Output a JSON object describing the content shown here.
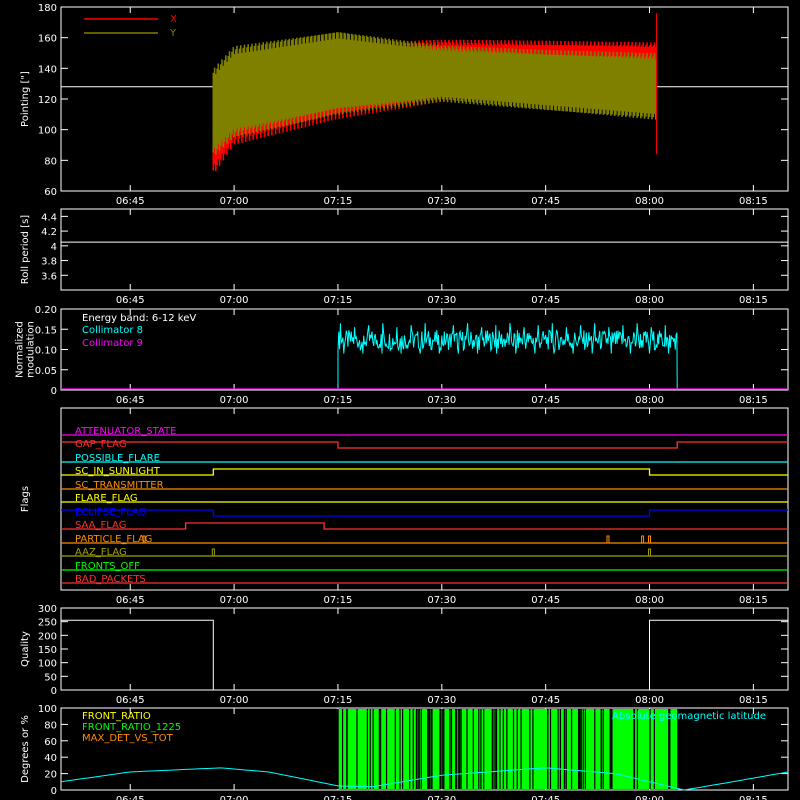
{
  "time_ticks": [
    "06:45",
    "07:00",
    "07:15",
    "07:30",
    "07:45",
    "08:00",
    "08:15"
  ],
  "colors": {
    "x": "#ff0000",
    "y": "#808000",
    "white": "#ffffff",
    "cyan": "#00ffff",
    "magenta": "#ff00ff",
    "green": "#00ff00",
    "orange": "#ff8c00",
    "yellow": "#ffff00",
    "blue": "#0000ff",
    "red": "#ff3030",
    "olive": "#a0a000"
  },
  "chart_data": [
    {
      "type": "area",
      "id": "pointing",
      "ylabel": "Pointing [\"]",
      "ylim": [
        60,
        180
      ],
      "yticks": [
        60,
        80,
        100,
        120,
        140,
        160,
        180
      ],
      "xlim": [
        "06:35",
        "08:20"
      ],
      "legend": [
        "X",
        "Y"
      ],
      "reference_line": 128,
      "data_range": [
        "06:57",
        "08:01"
      ],
      "series": [
        {
          "name": "X",
          "x": [
            "06:57",
            "07:00",
            "07:15",
            "07:30",
            "07:45",
            "08:01"
          ],
          "low": [
            70,
            90,
            107,
            118,
            121,
            122
          ],
          "high": [
            136,
            150,
            157,
            159,
            158,
            157
          ]
        },
        {
          "name": "Y",
          "x": [
            "06:57",
            "07:00",
            "07:15",
            "07:30",
            "07:45",
            "08:01"
          ],
          "low": [
            82,
            95,
            110,
            118,
            112,
            106
          ],
          "high": [
            140,
            155,
            165,
            155,
            152,
            150
          ]
        }
      ]
    },
    {
      "type": "line",
      "id": "roll",
      "ylabel": "Roll period [s]",
      "ylim": [
        3.4,
        4.5
      ],
      "yticks": [
        3.6,
        3.8,
        4.0,
        4.2,
        4.4
      ],
      "xlim": [
        "06:35",
        "08:20"
      ],
      "series": [
        {
          "x": [
            "06:35",
            "08:20"
          ],
          "values": [
            4.05,
            4.05
          ]
        }
      ]
    },
    {
      "type": "line",
      "id": "modulation",
      "ylabel": "Normalized\nmodulation",
      "ylim": [
        0.0,
        0.2
      ],
      "yticks": [
        0.0,
        0.05,
        0.1,
        0.15,
        0.2
      ],
      "xlim": [
        "06:35",
        "08:20"
      ],
      "annotations": [
        "Energy band: 6-12 keV"
      ],
      "legend": [
        "Collimator 8",
        "Collimator 9"
      ],
      "series": [
        {
          "name": "Collimator 8",
          "x_range": [
            "07:15",
            "08:04"
          ],
          "mean": 0.123,
          "min": 0.08,
          "max": 0.165
        },
        {
          "name": "Collimator 9",
          "x": [
            "06:35",
            "08:20"
          ],
          "values": [
            0.0,
            0.0
          ]
        }
      ]
    },
    {
      "type": "line",
      "id": "flags",
      "ylabel": "Flags",
      "xlim": [
        "06:35",
        "08:20"
      ],
      "series": [
        {
          "name": "ATTENUATOR_STATE",
          "color": "magenta",
          "segments": [
            [
              "06:35",
              "08:20",
              0
            ]
          ]
        },
        {
          "name": "GAP_FLAG",
          "color": "red",
          "segments": [
            [
              "06:35",
              "07:15",
              1
            ],
            [
              "07:15",
              "08:04",
              0
            ],
            [
              "08:04",
              "08:20",
              1
            ]
          ]
        },
        {
          "name": "POSSIBLE_FLARE",
          "color": "cyan",
          "segments": [
            [
              "06:35",
              "08:20",
              0
            ]
          ]
        },
        {
          "name": "SC_IN_SUNLIGHT",
          "color": "yellow",
          "segments": [
            [
              "06:35",
              "06:57",
              0
            ],
            [
              "06:57",
              "08:00",
              1
            ],
            [
              "08:00",
              "08:20",
              0
            ]
          ]
        },
        {
          "name": "SC_TRANSMITTER",
          "color": "orange",
          "segments": [
            [
              "06:35",
              "08:20",
              0
            ]
          ]
        },
        {
          "name": "FLARE_FLAG",
          "color": "yellow",
          "segments": [
            [
              "06:35",
              "08:20",
              0
            ]
          ]
        },
        {
          "name": "ECLIPSE_FLAG",
          "color": "blue",
          "segments": [
            [
              "06:35",
              "06:57",
              1
            ],
            [
              "06:57",
              "08:00",
              0
            ],
            [
              "08:00",
              "08:20",
              1
            ]
          ]
        },
        {
          "name": "SAA_FLAG",
          "color": "red",
          "segments": [
            [
              "06:35",
              "06:53",
              0
            ],
            [
              "06:53",
              "07:13",
              1
            ],
            [
              "07:13",
              "08:20",
              0
            ]
          ]
        },
        {
          "name": "PARTICLE_FLAG",
          "color": "orange",
          "segments": [
            [
              "06:35",
              "08:20",
              0
            ]
          ],
          "spikes": [
            "06:47",
            "07:54",
            "07:59",
            "08:00"
          ]
        },
        {
          "name": "AAZ_FLAG",
          "color": "olive",
          "segments": [
            [
              "06:35",
              "08:20",
              0
            ]
          ],
          "spikes": [
            "06:57",
            "08:00"
          ]
        },
        {
          "name": "FRONTS_OFF",
          "color": "green",
          "segments": [
            [
              "06:35",
              "08:20",
              0
            ]
          ]
        },
        {
          "name": "BAD_PACKETS",
          "color": "red",
          "segments": [
            [
              "06:35",
              "08:20",
              0
            ]
          ]
        }
      ]
    },
    {
      "type": "line",
      "id": "quality",
      "ylabel": "Quality",
      "ylim": [
        0,
        300
      ],
      "yticks": [
        0,
        50,
        100,
        150,
        200,
        250,
        300
      ],
      "xlim": [
        "06:35",
        "08:20"
      ],
      "series": [
        {
          "x": [
            "06:35",
            "06:57",
            "06:57",
            "08:00",
            "08:00",
            "08:20"
          ],
          "values": [
            255,
            255,
            0,
            0,
            255,
            255
          ]
        }
      ]
    },
    {
      "type": "line",
      "id": "degrees",
      "ylabel": "Degrees or %",
      "ylim": [
        0,
        100
      ],
      "yticks": [
        0,
        20,
        40,
        60,
        80,
        100
      ],
      "xlim": [
        "06:35",
        "08:20"
      ],
      "legend": [
        "FRONT_RATIO",
        "FRONT_RATIO_1225",
        "MAX_DET_VS_TOT"
      ],
      "legend_right": "Absolute geomagnetic latitude",
      "series": [
        {
          "name": "Absolute geomagnetic latitude",
          "x": [
            "06:35",
            "06:45",
            "06:58",
            "07:05",
            "07:15",
            "07:20",
            "07:30",
            "07:45",
            "07:55",
            "08:05",
            "08:12",
            "08:20"
          ],
          "values": [
            10,
            22,
            27,
            22,
            5,
            4,
            18,
            27,
            20,
            0,
            10,
            22
          ]
        },
        {
          "name": "FRONT_RATIO_1225",
          "x_range": [
            "07:15",
            "08:04"
          ],
          "values": [
            0,
            100
          ]
        }
      ]
    }
  ]
}
